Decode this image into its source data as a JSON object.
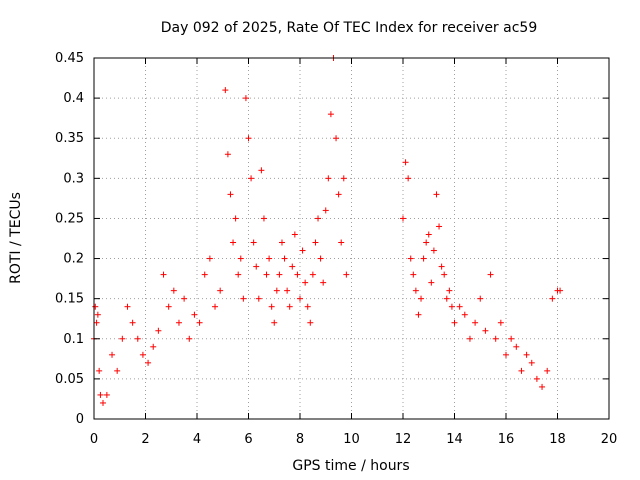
{
  "chart_data": {
    "type": "scatter",
    "title": "Day 092 of 2025, Rate Of TEC Index for receiver ac59",
    "xlabel": "GPS time / hours",
    "ylabel": "ROTI / TECUs",
    "xlim": [
      0,
      20
    ],
    "ylim": [
      0,
      0.45
    ],
    "xticks": [
      "0",
      "2",
      "4",
      "6",
      "8",
      "10",
      "12",
      "14",
      "16",
      "18",
      "20"
    ],
    "yticks": [
      "0",
      "0.05",
      "0.1",
      "0.15",
      "0.2",
      "0.25",
      "0.3",
      "0.35",
      "0.4",
      "0.45"
    ],
    "grid": true,
    "marker": "+",
    "color": "#ff0000",
    "series": [
      {
        "x": [
          0.0,
          0.05,
          0.1,
          0.15,
          0.2,
          0.25,
          0.35,
          0.5,
          0.7,
          0.9,
          1.1,
          1.3,
          1.5,
          1.7,
          1.9,
          2.1,
          2.3,
          2.5,
          2.7,
          2.9,
          3.1,
          3.3,
          3.5,
          3.7,
          3.9,
          4.1,
          4.3,
          4.5,
          4.7,
          4.9,
          5.1,
          5.2,
          5.3,
          5.4,
          5.5,
          5.6,
          5.7,
          5.8,
          5.9,
          6.0,
          6.1,
          6.2,
          6.3,
          6.4,
          6.5,
          6.6,
          6.7,
          6.8,
          6.9,
          7.0,
          7.1,
          7.2,
          7.3,
          7.4,
          7.5,
          7.6,
          7.7,
          7.8,
          7.9,
          8.0,
          8.1,
          8.2,
          8.3,
          8.4,
          8.5,
          8.6,
          8.7,
          8.8,
          8.9,
          9.0,
          9.1,
          9.2,
          9.3,
          9.4,
          9.5,
          9.6,
          9.7,
          9.8,
          12.0,
          12.1,
          12.2,
          12.3,
          12.4,
          12.5,
          12.6,
          12.7,
          12.8,
          12.9,
          13.0,
          13.1,
          13.2,
          13.3,
          13.4,
          13.5,
          13.6,
          13.7,
          13.8,
          13.9,
          14.0,
          14.2,
          14.4,
          14.6,
          14.8,
          15.0,
          15.2,
          15.4,
          15.6,
          15.8,
          16.0,
          16.2,
          16.4,
          16.6,
          16.8,
          17.0,
          17.2,
          17.4,
          17.6,
          17.8,
          18.0,
          18.1
        ],
        "y": [
          0.1,
          0.14,
          0.12,
          0.13,
          0.06,
          0.03,
          0.02,
          0.03,
          0.08,
          0.06,
          0.1,
          0.14,
          0.12,
          0.1,
          0.08,
          0.07,
          0.09,
          0.11,
          0.18,
          0.14,
          0.16,
          0.12,
          0.15,
          0.1,
          0.13,
          0.12,
          0.18,
          0.2,
          0.14,
          0.16,
          0.41,
          0.33,
          0.28,
          0.22,
          0.25,
          0.18,
          0.2,
          0.15,
          0.4,
          0.35,
          0.3,
          0.22,
          0.19,
          0.15,
          0.31,
          0.25,
          0.18,
          0.2,
          0.14,
          0.12,
          0.16,
          0.18,
          0.22,
          0.2,
          0.16,
          0.14,
          0.19,
          0.23,
          0.18,
          0.15,
          0.21,
          0.17,
          0.14,
          0.12,
          0.18,
          0.22,
          0.25,
          0.2,
          0.17,
          0.26,
          0.3,
          0.38,
          0.45,
          0.35,
          0.28,
          0.22,
          0.3,
          0.18,
          0.25,
          0.32,
          0.3,
          0.2,
          0.18,
          0.16,
          0.13,
          0.15,
          0.2,
          0.22,
          0.23,
          0.17,
          0.21,
          0.28,
          0.24,
          0.19,
          0.18,
          0.15,
          0.16,
          0.14,
          0.12,
          0.14,
          0.13,
          0.1,
          0.12,
          0.15,
          0.11,
          0.18,
          0.1,
          0.12,
          0.08,
          0.1,
          0.09,
          0.06,
          0.08,
          0.07,
          0.05,
          0.04,
          0.06,
          0.15,
          0.16,
          0.16
        ]
      }
    ]
  }
}
